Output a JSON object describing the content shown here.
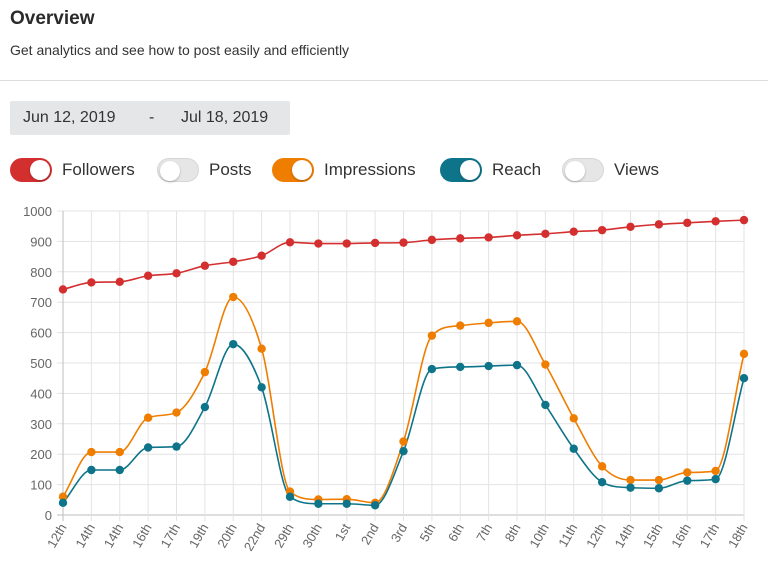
{
  "header": {
    "title": "Overview",
    "subtitle": "Get analytics and see how to post easily and efficiently"
  },
  "date_range": {
    "start": "Jun 12, 2019",
    "separator": "-",
    "end": "Jul 18, 2019"
  },
  "legend": [
    {
      "label": "Followers",
      "on": true,
      "color": "#d32f2f"
    },
    {
      "label": "Posts",
      "on": false,
      "color": "#e6e6e6"
    },
    {
      "label": "Impressions",
      "on": true,
      "color": "#ef7d00"
    },
    {
      "label": "Reach",
      "on": true,
      "color": "#0e7489"
    },
    {
      "label": "Views",
      "on": false,
      "color": "#e6e6e6"
    }
  ],
  "chart_data": {
    "type": "line",
    "categories": [
      "12th",
      "14th",
      "14th",
      "16th",
      "17th",
      "19th",
      "20th",
      "22nd",
      "29th",
      "30th",
      "1st",
      "2nd",
      "3rd",
      "5th",
      "6th",
      "7th",
      "8th",
      "10th",
      "11th",
      "12th",
      "14th",
      "15th",
      "16th",
      "17th",
      "18th"
    ],
    "ylim": [
      0,
      1000
    ],
    "yticks": [
      "0",
      "100",
      "200",
      "300",
      "400",
      "500",
      "600",
      "700",
      "800",
      "900",
      "1000"
    ],
    "grid": true,
    "series": [
      {
        "name": "Followers",
        "color": "#d32f2f",
        "values": [
          742,
          765,
          767,
          787,
          795,
          820,
          833,
          853,
          897,
          893,
          893,
          895,
          896,
          905,
          910,
          913,
          920,
          925,
          932,
          937,
          948,
          956,
          961,
          966,
          970
        ]
      },
      {
        "name": "Impressions",
        "color": "#ef7d00",
        "values": [
          60,
          207,
          207,
          320,
          337,
          470,
          717,
          547,
          77,
          51,
          52,
          40,
          242,
          590,
          623,
          632,
          637,
          495,
          318,
          160,
          115,
          115,
          140,
          145,
          530
        ]
      },
      {
        "name": "Reach",
        "color": "#0e7489",
        "values": [
          40,
          148,
          148,
          222,
          225,
          355,
          562,
          420,
          60,
          37,
          37,
          32,
          210,
          480,
          487,
          490,
          493,
          362,
          218,
          108,
          90,
          88,
          113,
          118,
          450
        ]
      }
    ]
  }
}
